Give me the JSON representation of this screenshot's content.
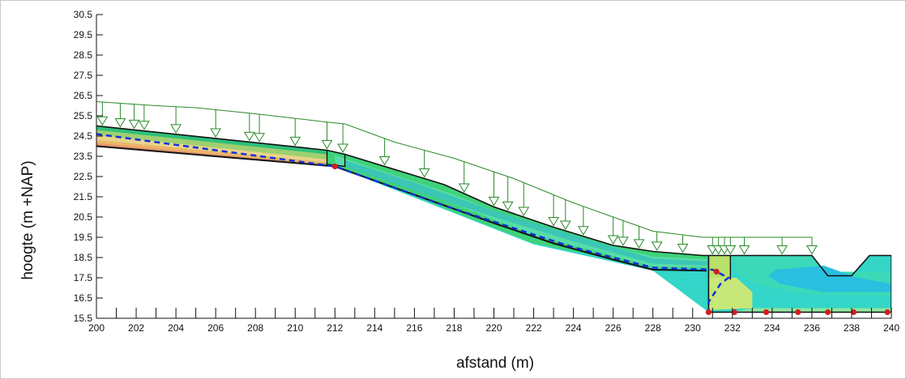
{
  "chart_data": {
    "type": "area",
    "xlabel": "afstand (m)",
    "ylabel": "hoogte (m +NAP)",
    "xlim": [
      200,
      240
    ],
    "ylim": [
      15.5,
      30.5
    ],
    "x_ticks": [
      "200",
      "202",
      "204",
      "206",
      "208",
      "210",
      "212",
      "214",
      "216",
      "218",
      "220",
      "222",
      "224",
      "226",
      "228",
      "230",
      "232",
      "234",
      "236",
      "238",
      "240"
    ],
    "y_ticks": [
      "30.5",
      "29.5",
      "28.5",
      "27.5",
      "26.5",
      "25.5",
      "24.5",
      "23.5",
      "22.5",
      "21.5",
      "20.5",
      "19.5",
      "18.5",
      "17.5",
      "16.5",
      "15.5"
    ],
    "grid": false,
    "legend": "none",
    "series": [
      {
        "values": [
          [
            200,
            25.0
          ],
          [
            211.6,
            23.8
          ],
          [
            212.5,
            23.6
          ],
          [
            217.5,
            22.1
          ],
          [
            220,
            21.0
          ],
          [
            223,
            20.0
          ],
          [
            226,
            19.1
          ],
          [
            228,
            18.8
          ],
          [
            230.5,
            18.6
          ],
          [
            236,
            18.6
          ],
          [
            236.8,
            17.6
          ],
          [
            238,
            17.6
          ],
          [
            238.9,
            18.6
          ],
          [
            240,
            18.6
          ]
        ]
      },
      {
        "values": [
          [
            200,
            24.8
          ],
          [
            211.6,
            23.3
          ],
          [
            214,
            22.6
          ],
          [
            220,
            20.5
          ],
          [
            226,
            18.6
          ],
          [
            228,
            18.3
          ],
          [
            231,
            18.0
          ]
        ]
      },
      {
        "values": [
          [
            200,
            24.6
          ],
          [
            212,
            23.0
          ],
          [
            218,
            20.9
          ],
          [
            224,
            19.0
          ],
          [
            228,
            18.0
          ],
          [
            231,
            17.9
          ],
          [
            231.8,
            17.5
          ],
          [
            231.4,
            17.2
          ],
          [
            230.8,
            16.3
          ],
          [
            230.8,
            15.8
          ]
        ]
      },
      {
        "values": [
          [
            200,
            24.0
          ],
          [
            211.4,
            23.1
          ],
          [
            212,
            22.9
          ],
          [
            214,
            22.3
          ],
          [
            217,
            21.4
          ],
          [
            220,
            20.1
          ],
          [
            223,
            19.0
          ],
          [
            226,
            18.3
          ],
          [
            228,
            17.9
          ],
          [
            230.6,
            17.9
          ]
        ]
      },
      {
        "values": [
          [
            212,
            23.0
          ],
          [
            230.8,
            15.8
          ],
          [
            232,
            15.8
          ],
          [
            233.5,
            15.8
          ],
          [
            235.5,
            15.8
          ],
          [
            237,
            15.8
          ],
          [
            238,
            15.8
          ],
          [
            240,
            15.8
          ]
        ]
      },
      {
        "values": [
          [
            200,
            26.2
          ],
          [
            203,
            26.0
          ],
          [
            205,
            25.9
          ],
          [
            208,
            25.6
          ],
          [
            211.5,
            25.2
          ],
          [
            212.5,
            25.1
          ],
          [
            215,
            24.2
          ],
          [
            218,
            23.4
          ],
          [
            221,
            22.4
          ],
          [
            224,
            21.2
          ],
          [
            226,
            20.5
          ],
          [
            228,
            19.8
          ],
          [
            230.5,
            19.5
          ],
          [
            233,
            19.5
          ],
          [
            236,
            19.5
          ]
        ]
      }
    ]
  }
}
